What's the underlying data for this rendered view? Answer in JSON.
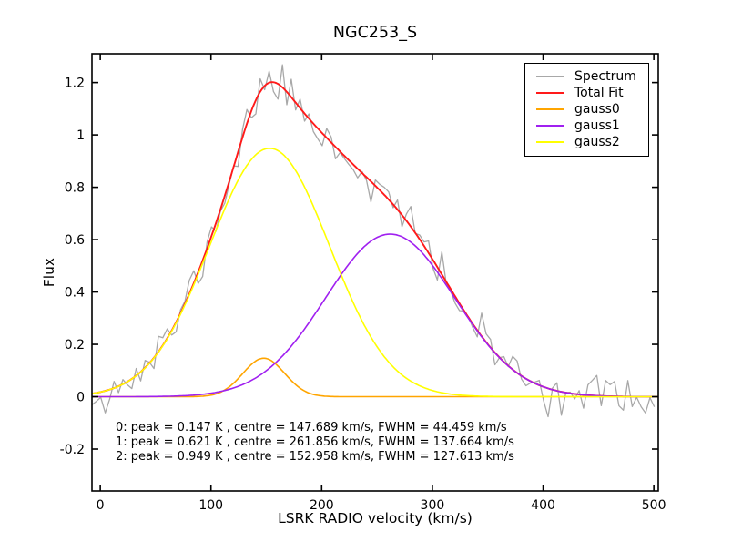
{
  "chart_data": {
    "type": "line",
    "title": "NGC253_S",
    "xlabel": "LSRK RADIO velocity (km/s)",
    "ylabel": "Flux",
    "xlim": [
      -7.5,
      504
    ],
    "ylim": [
      -0.36,
      1.31
    ],
    "x_ticks": [
      0,
      100,
      200,
      300,
      400,
      500
    ],
    "x_tick_labels": [
      "0",
      "100",
      "200",
      "300",
      "400",
      "500"
    ],
    "y_ticks": [
      -0.2,
      0,
      0.2,
      0.4,
      0.6,
      0.8,
      1,
      1.2
    ],
    "y_tick_labels": [
      "-0.2",
      "0",
      "0.2",
      "0.4",
      "0.6",
      "0.8",
      "1",
      "1.2"
    ],
    "grid": false,
    "legend_position": "upper-right",
    "series": [
      {
        "name": "Spectrum",
        "color": "#a8a8a8",
        "type": "noisy-spectrum",
        "noise_sigma": 0.038,
        "channel_width_kms": 4,
        "seed": 11,
        "description": "observed spectrum: total fit plus gaussian noise"
      },
      {
        "name": "Total Fit",
        "color": "#ff1a1a",
        "type": "sum-of-gaussians"
      },
      {
        "name": "gauss0",
        "color": "#ffa500",
        "type": "gaussian",
        "peak": 0.147,
        "centre": 147.689,
        "fwhm": 44.459
      },
      {
        "name": "gauss1",
        "color": "#a020f0",
        "type": "gaussian",
        "peak": 0.621,
        "centre": 261.856,
        "fwhm": 137.664
      },
      {
        "name": "gauss2",
        "color": "#ffff00",
        "type": "gaussian",
        "peak": 0.949,
        "centre": 152.958,
        "fwhm": 127.613
      }
    ],
    "peak_unit": "K",
    "annotations": [
      "0: peak = 0.147 K , centre = 147.689 km/s, FWHM = 44.459 km/s",
      "1: peak = 0.621 K , centre = 261.856 km/s, FWHM = 137.664 km/s",
      "2: peak = 0.949 K , centre = 152.958 km/s, FWHM = 127.613 km/s"
    ],
    "axis_color": "#000000",
    "background_color": "#ffffff"
  }
}
